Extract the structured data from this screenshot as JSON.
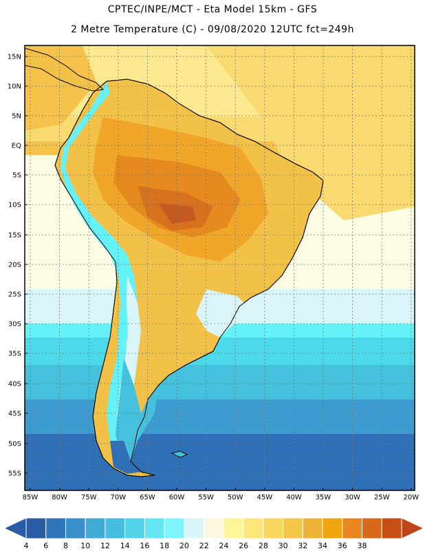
{
  "header": {
    "title_line1": "CPTEC/INPE/MCT -  Eta Model 15km - GFS",
    "title_line2": "2 Metre Temperature (C) - 09/08/2020 12UTC fct=249h"
  },
  "map": {
    "lat_labels": [
      "15N",
      "10N",
      "5N",
      "EQ",
      "5S",
      "10S",
      "15S",
      "20S",
      "25S",
      "30S",
      "35S",
      "40S",
      "45S",
      "50S",
      "55S"
    ],
    "lon_labels": [
      "85W",
      "80W",
      "75W",
      "70W",
      "65W",
      "60W",
      "55W",
      "50W",
      "45W",
      "40W",
      "35W",
      "30W",
      "25W",
      "20W"
    ],
    "ocean_bands": [
      "#fce98f",
      "#f9da70",
      "#f5c24c",
      "#fcfbe3",
      "#d9f5f8",
      "#64f1f8",
      "#4cd9e9",
      "#46c1dd",
      "#3d9ccf",
      "#2f6fb5"
    ],
    "land_colors": [
      "#f2c147",
      "#f0a629",
      "#e48a1e",
      "#d8711d",
      "#c45a22"
    ],
    "andes_colors": [
      "#64f1f8",
      "#d9f5f8",
      "#46c1dd",
      "#2f6fb5"
    ]
  },
  "colorbar": {
    "colors": [
      "#2a5ca6",
      "#2f76b9",
      "#3a8fc9",
      "#41a9d6",
      "#47bde1",
      "#52d3ea",
      "#64e6f3",
      "#7ff5fb",
      "#d9f5f8",
      "#fcf8e0",
      "#fdf59a",
      "#fbe777",
      "#f7d75d",
      "#f3c64a",
      "#edb336",
      "#f0a40e",
      "#e8871f",
      "#d8691a",
      "#c54f14"
    ],
    "ticks": [
      "4",
      "6",
      "8",
      "10",
      "12",
      "14",
      "16",
      "18",
      "20",
      "22",
      "24",
      "26",
      "28",
      "30",
      "32",
      "34",
      "36",
      "38"
    ],
    "left_arrow_color": "#2a5ca6",
    "right_arrow_color": "#c1431b"
  }
}
